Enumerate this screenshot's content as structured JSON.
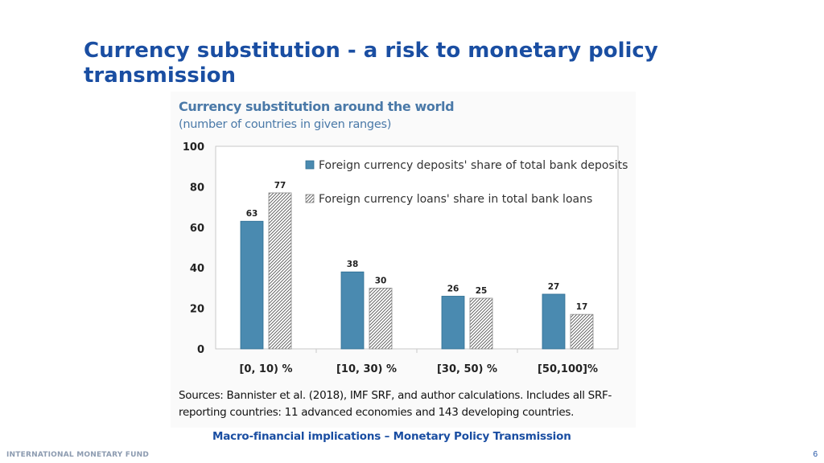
{
  "slide": {
    "title": "Currency substitution - a risk to monetary policy transmission",
    "footer_center": "Macro-financial implications – Monetary Policy Transmission",
    "footer_org": "INTERNATIONAL MONETARY FUND",
    "page_number": "6"
  },
  "figure": {
    "sources": "Sources: Bannister et al. (2018), IMF SRF, and author calculations. Includes all SRF-reporting countries: 11 advanced economies and 143 developing countries."
  },
  "colors": {
    "title": "#1a4ea2",
    "chart_title": "#4a79a8",
    "series1": "#4a8ab0",
    "series2_hatch": "#555555"
  },
  "chart_data": {
    "type": "bar",
    "title": "Currency substitution around the world",
    "subtitle": "(number of countries in given ranges)",
    "categories": [
      "[0, 10) %",
      "[10, 30) %",
      "[30, 50) %",
      "[50,100]%"
    ],
    "series": [
      {
        "name": "Foreign currency deposits' share of total bank deposits",
        "values": [
          63,
          38,
          26,
          27
        ],
        "style": "solid"
      },
      {
        "name": "Foreign currency loans' share in total bank loans",
        "values": [
          77,
          30,
          25,
          17
        ],
        "style": "hatched"
      }
    ],
    "ylim": [
      0,
      100
    ],
    "yticks": [
      0,
      20,
      40,
      60,
      80,
      100
    ],
    "xlabel": "",
    "ylabel": "",
    "grid": false,
    "legend_position": "top-right"
  }
}
